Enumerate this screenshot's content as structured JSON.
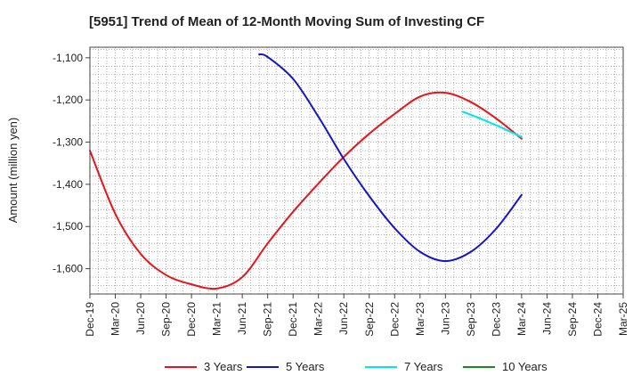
{
  "chart_data": {
    "type": "line",
    "title": "[5951]  Trend of Mean of 12-Month Moving Sum of Investing CF",
    "ylabel": "Amount (million yen)",
    "xlabel": "",
    "ylim": [
      -1660,
      -1075
    ],
    "yticks": [
      -1100,
      -1200,
      -1300,
      -1400,
      -1500,
      -1600
    ],
    "ytick_labels": [
      "-1,100",
      "-1,200",
      "-1,300",
      "-1,400",
      "-1,500",
      "-1,600"
    ],
    "x_categories": [
      "Dec-19",
      "Mar-20",
      "Jun-20",
      "Sep-20",
      "Dec-20",
      "Mar-21",
      "Jun-21",
      "Sep-21",
      "Dec-21",
      "Mar-22",
      "Jun-22",
      "Sep-22",
      "Dec-22",
      "Mar-23",
      "Jun-23",
      "Sep-23",
      "Dec-23",
      "Mar-24",
      "Jun-24",
      "Sep-24",
      "Dec-24",
      "Mar-25"
    ],
    "grid": true,
    "legend_position": "bottom",
    "series": [
      {
        "name": "3 Years",
        "color": "#e8141b",
        "x": [
          "Dec-19",
          "Mar-20",
          "Jun-20",
          "Sep-20",
          "Dec-20",
          "Mar-21",
          "Jun-21",
          "Sep-21",
          "Dec-21",
          "Mar-22",
          "Jun-22",
          "Sep-22",
          "Dec-22",
          "Mar-23",
          "Jun-23",
          "Sep-23",
          "Dec-23",
          "Mar-24"
        ],
        "values": [
          -1320,
          -1470,
          -1565,
          -1615,
          -1637,
          -1647,
          -1620,
          -1540,
          -1465,
          -1398,
          -1335,
          -1280,
          -1233,
          -1192,
          -1183,
          -1205,
          -1244,
          -1292
        ]
      },
      {
        "name": "5 Years",
        "color": "#1515c8",
        "x": [
          "Aug-21",
          "Sep-21",
          "Dec-21",
          "Mar-22",
          "Jun-22",
          "Sep-22",
          "Dec-22",
          "Mar-23",
          "Jun-23",
          "Sep-23",
          "Dec-23",
          "Mar-24"
        ],
        "values": [
          -1092,
          -1098,
          -1150,
          -1240,
          -1340,
          -1428,
          -1504,
          -1560,
          -1582,
          -1560,
          -1505,
          -1425
        ]
      },
      {
        "name": "7 Years",
        "color": "#00e5ee",
        "x": [
          "Aug-23",
          "Sep-23",
          "Dec-23",
          "Mar-24"
        ],
        "values": [
          -1228,
          -1235,
          -1260,
          -1288
        ]
      },
      {
        "name": "10 Years",
        "color": "#1a8a1a",
        "x": [],
        "values": []
      }
    ]
  }
}
